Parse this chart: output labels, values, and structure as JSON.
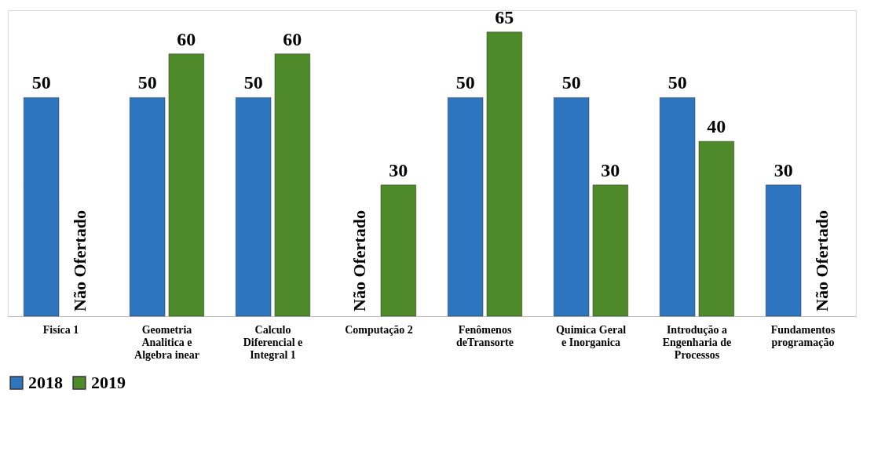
{
  "chart_data": {
    "type": "bar",
    "categories": [
      "Fisíca  1",
      "Geometria Analitica e Algebra inear",
      "Calculo Diferencial e Integral 1",
      "Computação 2",
      "Fenômenos deTransorte",
      "Quimica Geral e Inorganica",
      "Introdução a Engenharia de Processos",
      "Fundamentos programação"
    ],
    "series": [
      {
        "name": "2018",
        "color": "#2e75c0",
        "values": [
          50,
          50,
          50,
          null,
          50,
          50,
          50,
          30
        ]
      },
      {
        "name": "2019",
        "color": "#4f8a2a",
        "values": [
          null,
          60,
          60,
          30,
          65,
          30,
          40,
          null
        ]
      }
    ],
    "ylim": [
      0,
      70
    ],
    "tick_labels": "x",
    "data_labels": true,
    "legend": "bottom",
    "grid": false,
    "annotations": [
      {
        "text": "Não Ofertado",
        "x": "Fisíca  1"
      },
      {
        "text": "Não Ofertado",
        "x": "Computação 2"
      },
      {
        "text": "Não Ofertado",
        "x": "Fundamentos programação"
      }
    ]
  }
}
